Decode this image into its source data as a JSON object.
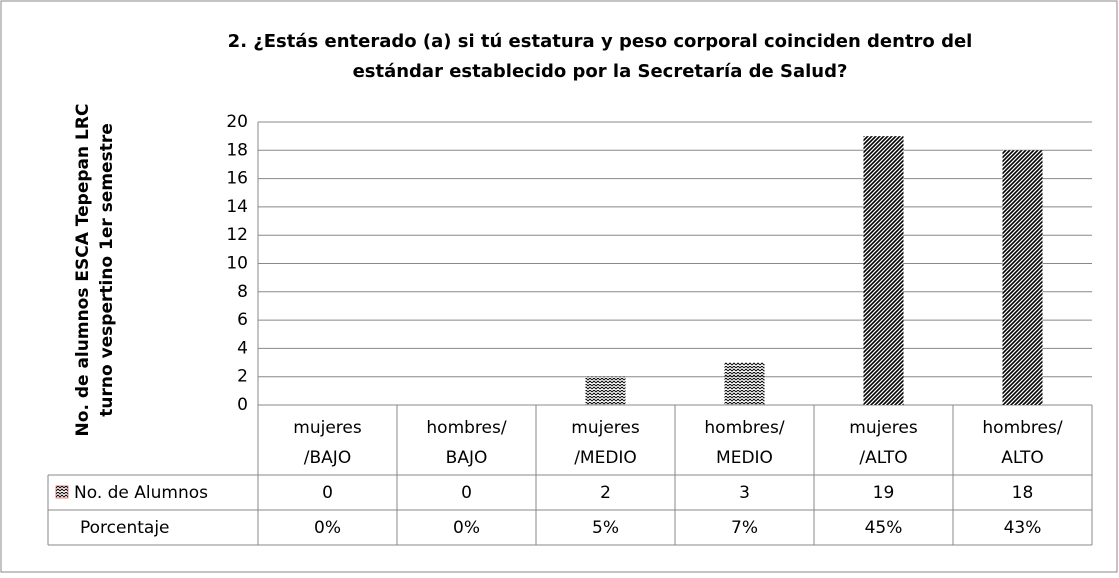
{
  "chart_data": {
    "type": "bar",
    "title": "2. ¿Estás enterado (a) si tú estatura y peso corporal  coinciden dentro del estándar  establecido por la Secretaría de Salud?",
    "ylabel": "No. de alumnos ESCA Tepepan LRC turno vespertino 1er  semestre",
    "categories": [
      "mujeres/BAJO",
      "hombres/BAJO",
      "mujeres/MEDIO",
      "hombres/MEDIO",
      "mujeres/ALTO",
      "hombres/ALTO"
    ],
    "series": [
      {
        "name": "No. de Alumnos",
        "color": "#000000",
        "values": [
          0,
          0,
          2,
          3,
          19,
          18
        ],
        "patterns": [
          "zigzag",
          "zigzag",
          "zigzag",
          "zigzag",
          "diagonal",
          "diagonal"
        ]
      }
    ],
    "table_row": {
      "name": "Porcentaje",
      "values": [
        0,
        0,
        5,
        7,
        45,
        43
      ],
      "value_labels": [
        "0%",
        "0%",
        "5%",
        "7%",
        "45%",
        "43%"
      ]
    },
    "ylim": [
      0,
      20
    ],
    "yticks": [
      0,
      2,
      4,
      6,
      8,
      10,
      12,
      14,
      16,
      18,
      20
    ],
    "grid": true
  }
}
